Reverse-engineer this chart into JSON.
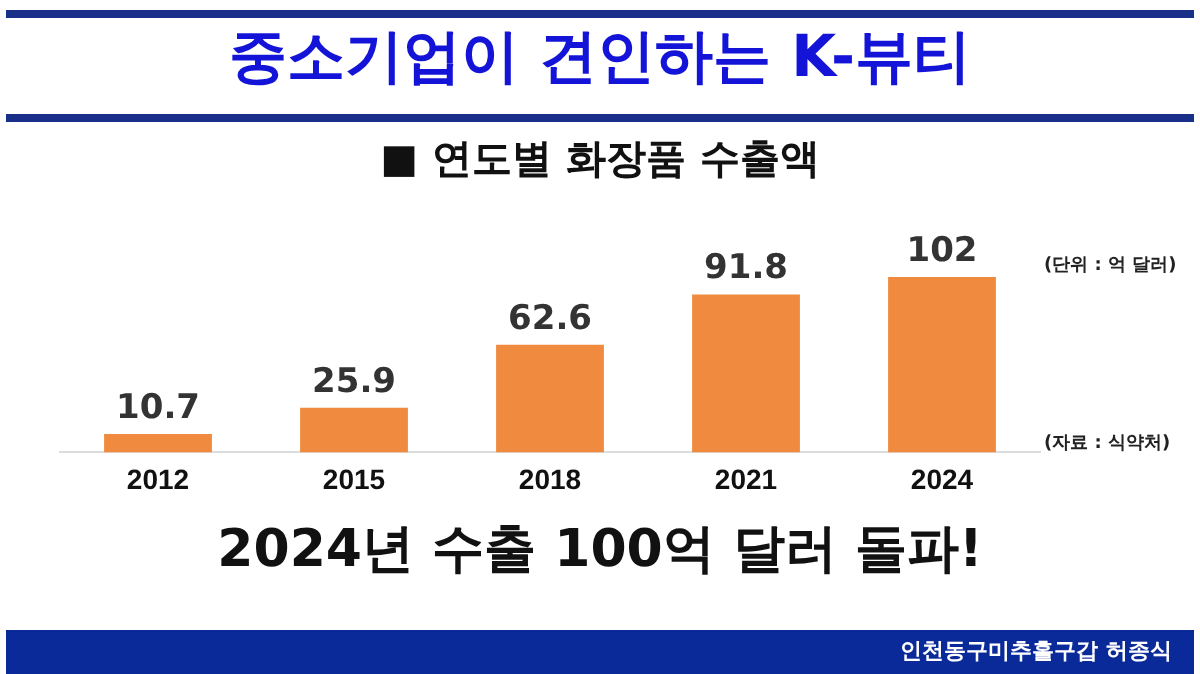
{
  "chart_data": {
    "type": "bar",
    "title": "중소기업이 견인하는 K-뷰티",
    "subtitle": "■ 연도별 화장품 수출액",
    "categories": [
      "2012",
      "2015",
      "2018",
      "2021",
      "2024"
    ],
    "values": [
      10.7,
      25.9,
      62.6,
      91.8,
      102
    ],
    "color": "#ef8a3e",
    "data_labels": true,
    "tick_labels": "x",
    "grid": false,
    "legend": false,
    "annotations": [
      "(단위 : 억 달러)",
      "(자료 : 식약처)",
      "2024년 수출 100억 달러 돌파!",
      "인천동구미추홀구갑 허종식"
    ]
  }
}
